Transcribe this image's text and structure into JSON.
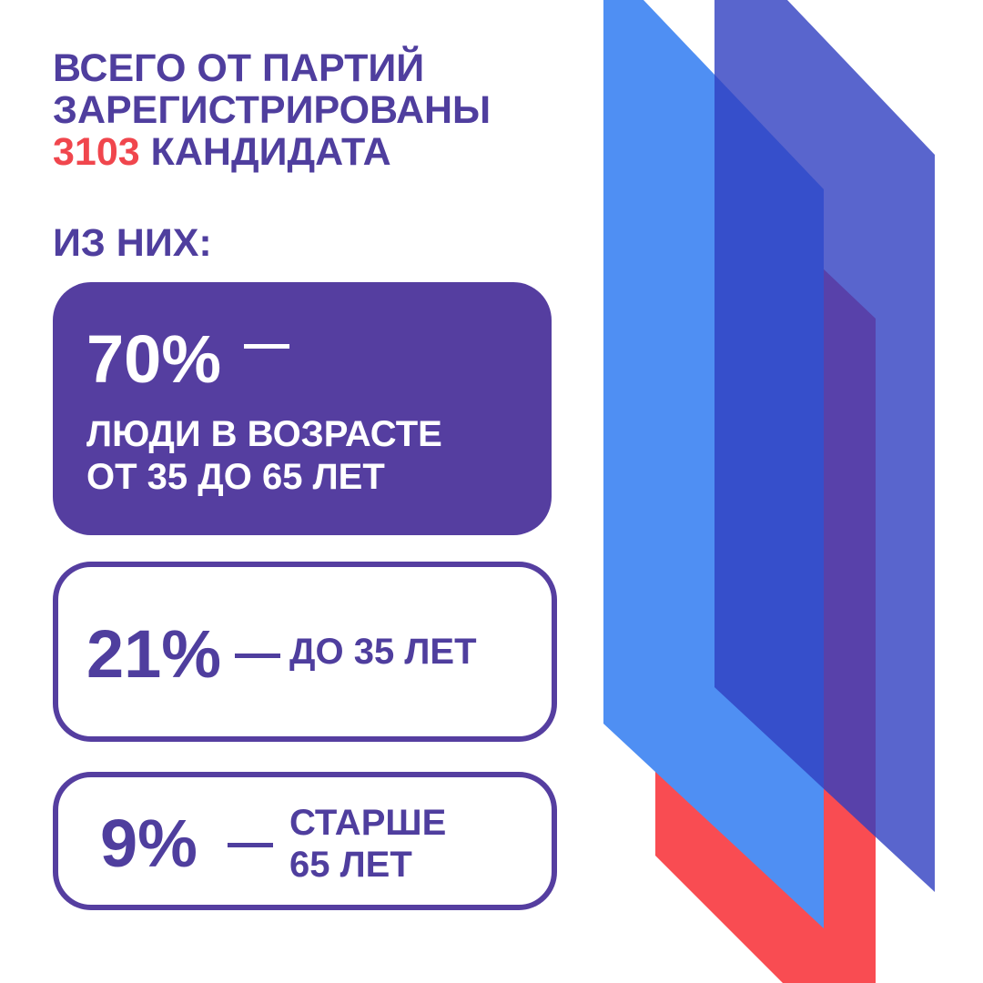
{
  "header": {
    "title_lines": [
      "ВСЕГО ОТ ПАРТИЙ",
      "ЗАРЕГИСТРИРОВАНЫ"
    ],
    "count": "3103",
    "count_suffix": "КАНДИДАТА"
  },
  "subtitle": "ИЗ НИХ:",
  "cards": [
    {
      "percent": "70%",
      "dash": "—",
      "text_lines": [
        "ЛЮДИ В ВОЗРАСТЕ",
        "ОТ 35 ДО 65 ЛЕТ"
      ]
    },
    {
      "percent": "21%",
      "dash": "—",
      "text_lines": [
        "ДО 35 ЛЕТ"
      ]
    },
    {
      "percent": "9%",
      "dash": "—",
      "text_lines": [
        "СТАРШЕ",
        "65 ЛЕТ"
      ]
    }
  ]
}
